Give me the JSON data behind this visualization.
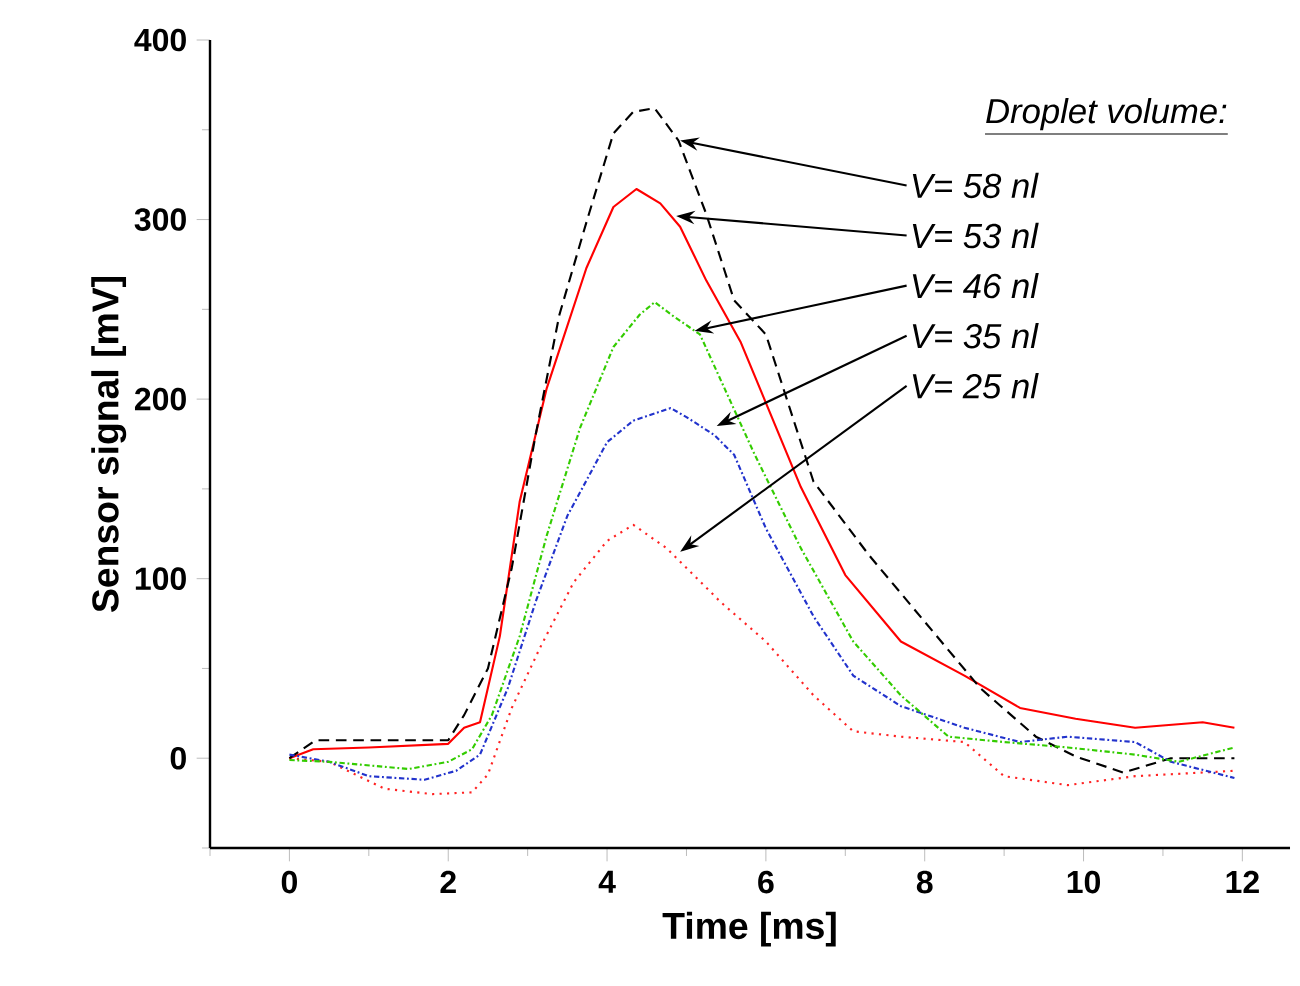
{
  "chart_data": {
    "type": "line",
    "xlabel": "Time [ms]",
    "ylabel": "Sensor signal [mV]",
    "xlim": [
      -1,
      12.6
    ],
    "ylim": [
      -50,
      400
    ],
    "xticks": [
      0,
      {
        "value": 1,
        "label": null
      },
      2,
      {
        "value": 3,
        "label": null
      },
      4,
      {
        "value": 5,
        "label": null
      },
      6,
      {
        "value": 7,
        "label": null
      },
      8,
      {
        "value": 9,
        "label": null
      },
      10,
      {
        "value": 11,
        "label": null
      },
      12,
      {
        "value": -1,
        "label": null
      }
    ],
    "yticks": [
      {
        "value": -50,
        "label": null
      },
      0,
      {
        "value": 50,
        "label": null
      },
      100,
      {
        "value": 150,
        "label": null
      },
      200,
      {
        "value": 250,
        "label": null
      },
      300,
      {
        "value": 350,
        "label": null
      },
      400
    ],
    "marker": "none",
    "series": [
      {
        "color": "#000000",
        "line_style": "dashed",
        "x": [
          0,
          0.33,
          1.0,
          2.0,
          2.2,
          2.5,
          2.8,
          3.1,
          3.4,
          3.75,
          4.08,
          4.33,
          4.6,
          4.9,
          5.25,
          5.6,
          6.0,
          6.6,
          7.3,
          8.0,
          8.7,
          9.4,
          9.9,
          10.5,
          11.1,
          11.9
        ],
        "values": [
          0,
          10,
          10,
          10,
          24,
          50,
          106,
          180,
          247,
          300,
          348,
          360,
          362,
          344,
          303,
          255,
          236,
          154,
          113,
          76,
          39,
          12,
          1,
          -8,
          0,
          0
        ]
      },
      {
        "color": "#ff0000",
        "line_style": "solid",
        "x": [
          0,
          0.3,
          1.0,
          2.0,
          2.2,
          2.4,
          2.65,
          2.9,
          3.24,
          3.74,
          4.08,
          4.37,
          4.67,
          4.92,
          5.25,
          5.68,
          6.44,
          7.0,
          7.7,
          8.5,
          9.2,
          9.9,
          10.65,
          11.5,
          11.9
        ],
        "values": [
          0,
          5,
          6,
          8,
          17,
          20,
          68,
          143,
          206,
          273,
          307,
          317,
          309,
          296,
          266,
          232,
          151,
          102,
          65,
          46,
          28,
          22,
          17,
          20,
          17
        ]
      },
      {
        "color": "#33cc00",
        "line_style": "dashdot",
        "x": [
          0,
          0.5,
          1.5,
          2.0,
          2.3,
          2.55,
          2.9,
          3.24,
          3.66,
          4.08,
          4.41,
          4.6,
          4.84,
          5.17,
          5.86,
          6.44,
          7.1,
          7.7,
          8.3,
          9.0,
          9.8,
          10.65,
          11.2,
          11.9
        ],
        "values": [
          -1,
          -2,
          -6,
          -2,
          5,
          24,
          68,
          124,
          184,
          229,
          247,
          254,
          246,
          236,
          169,
          117,
          65,
          35,
          12,
          9,
          6,
          2,
          -2,
          6
        ]
      },
      {
        "color": "#2233cc",
        "line_style": "dashdot",
        "x": [
          0,
          0.5,
          1.0,
          1.7,
          2.1,
          2.4,
          2.75,
          3.1,
          3.5,
          4.0,
          4.33,
          4.8,
          5.0,
          5.35,
          5.6,
          6.0,
          6.6,
          7.1,
          7.7,
          8.5,
          9.2,
          9.8,
          10.65,
          11.1,
          11.9
        ],
        "values": [
          2,
          -2,
          -10,
          -12,
          -7,
          2,
          39,
          87,
          135,
          176,
          188,
          195,
          190,
          180,
          169,
          128,
          79,
          46,
          29,
          17,
          9,
          12,
          9,
          -2,
          -11
        ]
      },
      {
        "color": "#ff2222",
        "line_style": "dotted",
        "x": [
          0,
          0.5,
          1.2,
          1.8,
          2.3,
          2.5,
          2.8,
          3.15,
          3.58,
          4.0,
          4.33,
          4.75,
          5.43,
          6.0,
          6.6,
          7.1,
          7.7,
          8.5,
          9.0,
          9.8,
          10.65,
          11.9
        ],
        "values": [
          0,
          -2,
          -17,
          -20,
          -19,
          -9,
          28,
          61,
          98,
          121,
          130,
          117,
          87,
          65,
          35,
          15,
          12,
          9,
          -10,
          -15,
          -10,
          -7
        ]
      }
    ],
    "annotations": [
      "Droplet volume:",
      {
        "text": "V= 58 nl",
        "x": 4.92,
        "y": 344
      },
      {
        "text": "V= 53 nl",
        "x": 4.87,
        "y": 302
      },
      {
        "text": "V= 46 nl",
        "x": 5.1,
        "y": 238
      },
      {
        "text": "V= 35 nl",
        "x": 5.38,
        "y": 185
      },
      {
        "text": "V= 25 nl",
        "x": 4.92,
        "y": 115
      }
    ]
  }
}
